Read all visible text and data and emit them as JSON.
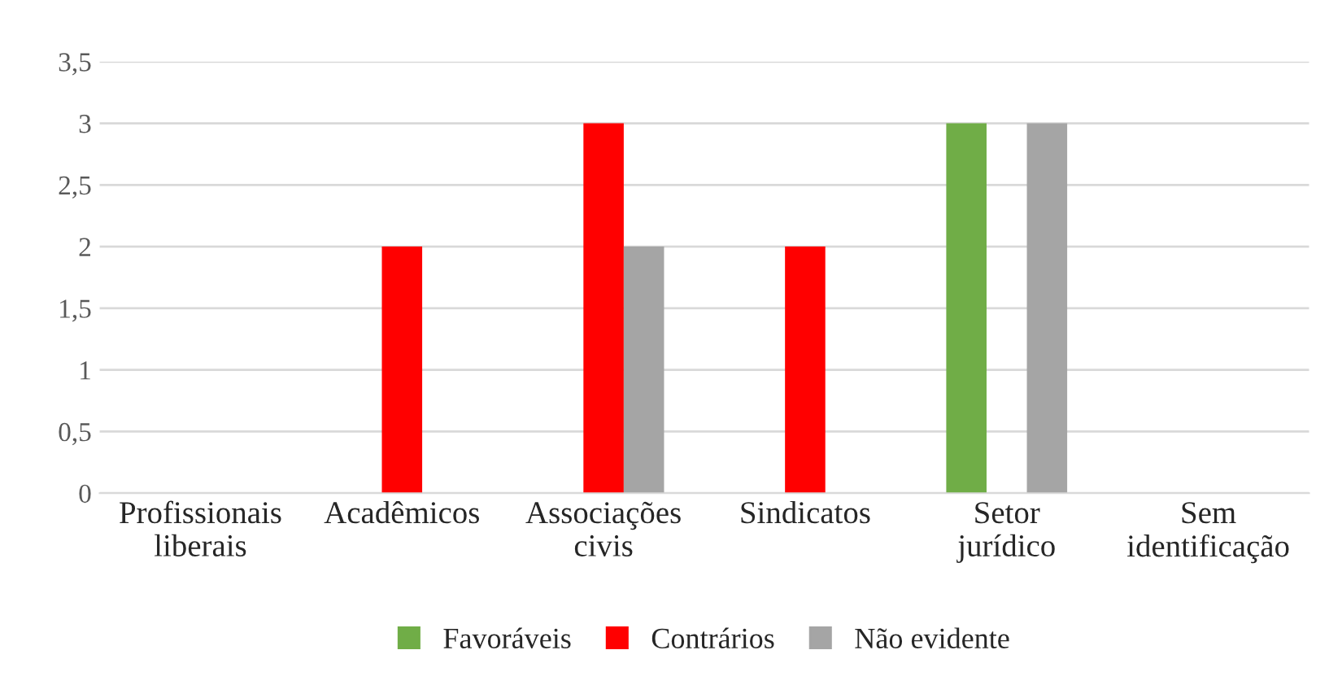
{
  "chart_data": {
    "type": "bar",
    "categories": [
      "Profissionais\nliberais",
      "Acadêmicos",
      "Associações\ncivis",
      "Sindicatos",
      "Setor\njurídico",
      "Sem\nidentificação"
    ],
    "series": [
      {
        "name": "Favoráveis",
        "color": "#70ad47",
        "values": [
          0,
          0,
          0,
          0,
          3,
          0
        ]
      },
      {
        "name": "Contrários",
        "color": "#ff0000",
        "values": [
          0,
          2,
          3,
          2,
          0,
          0
        ]
      },
      {
        "name": "Não evidente",
        "color": "#a5a5a5",
        "values": [
          0,
          0,
          2,
          0,
          3,
          0
        ]
      }
    ],
    "ylim": [
      0,
      3.5
    ],
    "yticks": [
      0,
      {
        "value": 0.5,
        "label": "0,5"
      },
      1,
      {
        "value": 1.5,
        "label": "1,5"
      },
      2,
      {
        "value": 2.5,
        "label": "2,5"
      },
      3,
      {
        "value": 3.5,
        "label": "3,5"
      }
    ],
    "grid": "y",
    "legend": "bottom"
  }
}
